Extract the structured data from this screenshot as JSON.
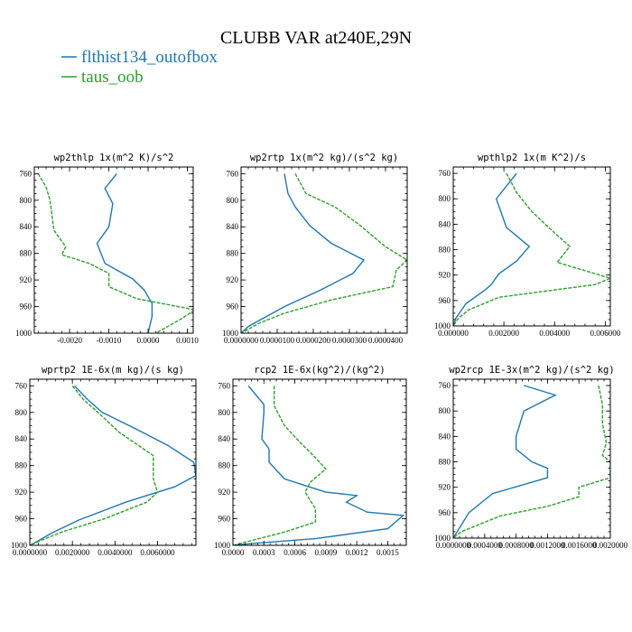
{
  "figure": {
    "title": "CLUBB VAR at240E,29N",
    "legend": [
      {
        "label": "flthist134_outofbox",
        "color": "#1f77b4"
      },
      {
        "label": "taus_oob",
        "color": "#2ca02c"
      }
    ]
  },
  "chart_data": [
    {
      "type": "line",
      "title": "wp2thlp  1x(m^2 K)/s^2",
      "xlim": [
        -0.0029,
        0.00115
      ],
      "ylim": [
        1000,
        750
      ],
      "xticks": [
        -0.002,
        -0.001,
        0.0,
        0.001
      ],
      "xtick_labels": [
        "-0.0020",
        "-0.0010",
        "0.0000",
        "0.0010"
      ],
      "yticks": [
        760,
        800,
        840,
        880,
        920,
        960,
        1000
      ],
      "series": [
        {
          "name": "flthist134_outofbox",
          "color": "#1f77b4",
          "x": [
            -0.0008,
            -0.0011,
            -0.0009,
            -0.001,
            -0.0013,
            -0.0012,
            -0.0011,
            -0.0008,
            -0.0004,
            -0.0001,
            0.0001,
            0.0001,
            0.0
          ],
          "y": [
            760,
            782,
            805,
            840,
            865,
            880,
            895,
            905,
            918,
            935,
            955,
            975,
            1000
          ]
        },
        {
          "name": "taus_oob",
          "color": "#2ca02c",
          "x": [
            -0.0028,
            -0.0026,
            -0.0025,
            -0.0024,
            -0.0021,
            -0.0022,
            -0.0015,
            -0.001,
            -0.001,
            -0.0003,
            0.0012,
            0.0008,
            0.0002
          ],
          "y": [
            760,
            780,
            800,
            845,
            870,
            882,
            895,
            910,
            930,
            948,
            965,
            980,
            1000
          ]
        }
      ]
    },
    {
      "type": "line",
      "title": "wp2rtp  1x(m^2 kg)/(s^2 kg)",
      "xlim": [
        0.0,
        4.6e-05
      ],
      "ylim": [
        1000,
        750
      ],
      "xticks": [
        0.0,
        1e-05,
        2e-05,
        3e-05,
        4e-05
      ],
      "xtick_labels": [
        "0.0000000",
        "0.0000100",
        "0.0000200",
        "0.0000300",
        "0.0000400"
      ],
      "yticks": [
        760,
        800,
        840,
        880,
        920,
        960,
        1000
      ],
      "series": [
        {
          "name": "flthist134_outofbox",
          "color": "#1f77b4",
          "x": [
            1.2e-05,
            1.3e-05,
            1.5e-05,
            1.9e-05,
            2.5e-05,
            3.4e-05,
            3.1e-05,
            2.2e-05,
            1.2e-05,
            2e-06,
            0.0
          ],
          "y": [
            760,
            790,
            810,
            838,
            865,
            890,
            910,
            935,
            960,
            990,
            1000
          ]
        },
        {
          "name": "taus_oob",
          "color": "#2ca02c",
          "x": [
            1.5e-05,
            1.8e-05,
            2.6e-05,
            3.3e-05,
            4e-05,
            4.6e-05,
            4.3e-05,
            4.2e-05,
            2.5e-05,
            1.2e-05,
            5e-06,
            0.0
          ],
          "y": [
            760,
            790,
            810,
            838,
            870,
            890,
            905,
            930,
            950,
            970,
            985,
            1000
          ]
        }
      ]
    },
    {
      "type": "line",
      "title": "wpthlp2  1x(m K^2)/s",
      "xlim": [
        0.0,
        0.0062
      ],
      "ylim": [
        1000,
        750
      ],
      "xticks": [
        0.0,
        0.002,
        0.004,
        0.006
      ],
      "xtick_labels": [
        "0.000000",
        "0.002000",
        "0.004000",
        "0.006000"
      ],
      "yticks": [
        760,
        800,
        840,
        880,
        920,
        960,
        1000
      ],
      "series": [
        {
          "name": "flthist134_outofbox",
          "color": "#1f77b4",
          "x": [
            0.0025,
            0.0022,
            0.0017,
            0.0021,
            0.003,
            0.0025,
            0.0018,
            0.0015,
            0.0013,
            0.0005,
            0.0001,
            0.0
          ],
          "y": [
            760,
            775,
            800,
            845,
            875,
            898,
            918,
            935,
            942,
            965,
            988,
            1000
          ]
        },
        {
          "name": "taus_oob",
          "color": "#2ca02c",
          "x": [
            0.0021,
            0.0025,
            0.0031,
            0.0039,
            0.0046,
            0.0041,
            0.0062,
            0.0056,
            0.0018,
            0.0006,
            0.0002,
            0.0
          ],
          "y": [
            760,
            790,
            820,
            850,
            875,
            900,
            925,
            935,
            955,
            975,
            988,
            1000
          ]
        }
      ]
    },
    {
      "type": "line",
      "title": "wprtp2  1E-6x(m kg)/(s kg)",
      "xlim": [
        0.0,
        0.0078
      ],
      "ylim": [
        1000,
        750
      ],
      "xticks": [
        0.0,
        0.002,
        0.004,
        0.006
      ],
      "xtick_labels": [
        "0.0000000",
        "0.0020000",
        "0.0040000",
        "0.0060000"
      ],
      "yticks": [
        760,
        800,
        840,
        880,
        920,
        960,
        1000
      ],
      "series": [
        {
          "name": "flthist134_outofbox",
          "color": "#1f77b4",
          "x": [
            0.0021,
            0.0027,
            0.0034,
            0.005,
            0.0065,
            0.0077,
            0.0078,
            0.0068,
            0.0045,
            0.0023,
            0.001,
            0.0003,
            0.0
          ],
          "y": [
            760,
            780,
            800,
            825,
            850,
            875,
            895,
            912,
            935,
            962,
            982,
            995,
            1000
          ]
        },
        {
          "name": "taus_oob",
          "color": "#2ca02c",
          "x": [
            0.002,
            0.0025,
            0.0032,
            0.0042,
            0.0058,
            0.0058,
            0.006,
            0.0055,
            0.0035,
            0.0015,
            0.0005,
            0.0
          ],
          "y": [
            760,
            780,
            800,
            830,
            865,
            900,
            920,
            935,
            960,
            980,
            993,
            1000
          ]
        }
      ]
    },
    {
      "type": "line",
      "title": "rcp2  1E-6x(kg^2)/(kg^2)",
      "xlim": [
        0.0,
        0.00168
      ],
      "ylim": [
        1000,
        750
      ],
      "xticks": [
        0.0,
        0.0003,
        0.0006,
        0.0009,
        0.0012,
        0.0015
      ],
      "xtick_labels": [
        "0.0000",
        "0.0003",
        "0.0006",
        "0.0009",
        "0.0012",
        "0.0015"
      ],
      "yticks": [
        760,
        800,
        840,
        880,
        920,
        960,
        1000
      ],
      "series": [
        {
          "name": "flthist134_outofbox",
          "color": "#1f77b4",
          "x": [
            0.00015,
            0.0003,
            0.0003,
            0.00028,
            0.00035,
            0.00035,
            0.0005,
            0.0007,
            0.0009,
            0.0012,
            0.0011,
            0.0013,
            0.00165,
            0.0015,
            0.0008,
            0.0002,
            0.0
          ],
          "y": [
            760,
            788,
            800,
            840,
            855,
            875,
            900,
            910,
            920,
            925,
            935,
            950,
            955,
            975,
            990,
            997,
            1000
          ]
        },
        {
          "name": "taus_oob",
          "color": "#2ca02c",
          "x": [
            0.0004,
            0.0004,
            0.0005,
            0.00065,
            0.00078,
            0.0009,
            0.00075,
            0.0007,
            0.0008,
            0.0008,
            0.0005,
            0.0002,
            0.0
          ],
          "y": [
            760,
            790,
            820,
            845,
            865,
            885,
            905,
            920,
            945,
            965,
            980,
            992,
            1000
          ]
        }
      ]
    },
    {
      "type": "line",
      "title": "wp2rcp  1E-3x(m^2 kg)/(s^2 kg)",
      "xlim": [
        0.0,
        0.002
      ],
      "ylim": [
        1000,
        750
      ],
      "xticks": [
        0.0,
        0.0004,
        0.0008,
        0.0012,
        0.0016,
        0.002
      ],
      "xtick_labels": [
        "0.0000000",
        "0.0004000",
        "0.0008000",
        "0.0012000",
        "0.0016000",
        "0.0020000"
      ],
      "yticks": [
        760,
        800,
        840,
        880,
        920,
        960,
        1000
      ],
      "series": [
        {
          "name": "flthist134_outofbox",
          "color": "#1f77b4",
          "x": [
            0.0009,
            0.0013,
            0.0009,
            0.0008,
            0.0008,
            0.001,
            0.0012,
            0.0012,
            0.0005,
            0.0002,
            0.0001,
            0.0
          ],
          "y": [
            760,
            775,
            800,
            840,
            860,
            880,
            890,
            905,
            930,
            960,
            980,
            1000
          ]
        },
        {
          "name": "taus_oob",
          "color": "#2ca02c",
          "x": [
            0.00185,
            0.0019,
            0.0019,
            0.00195,
            0.0019,
            0.002,
            0.002,
            0.0016,
            0.0016,
            0.0012,
            0.0006,
            0.0001,
            0.0
          ],
          "y": [
            760,
            790,
            820,
            850,
            870,
            880,
            905,
            920,
            935,
            950,
            965,
            990,
            1000
          ]
        }
      ]
    }
  ]
}
